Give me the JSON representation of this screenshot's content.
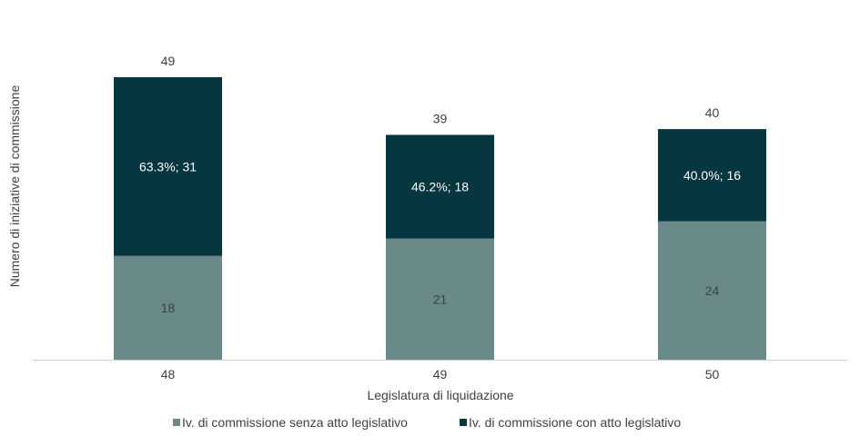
{
  "chart_data": {
    "type": "bar",
    "stacked": true,
    "categories": [
      "48",
      "49",
      "50"
    ],
    "series": [
      {
        "name": "Iv. di commissione senza atto legislativo",
        "color": "#6a8a8a",
        "values": [
          18,
          21,
          24
        ],
        "labels": [
          "18",
          "21",
          "24"
        ]
      },
      {
        "name": "Iv. di commissione con atto legislativo",
        "color": "#063640",
        "values": [
          31,
          18,
          16
        ],
        "labels": [
          "63.3%; 31",
          "46.2%; 18",
          "40.0%; 16"
        ]
      }
    ],
    "totals": [
      "49",
      "39",
      "40"
    ],
    "xlabel": "Legislatura di liquidazione",
    "ylabel": "Numero di iniziative di commissione",
    "ylim": [
      0,
      50
    ],
    "grid": false,
    "legend_position": "bottom"
  }
}
